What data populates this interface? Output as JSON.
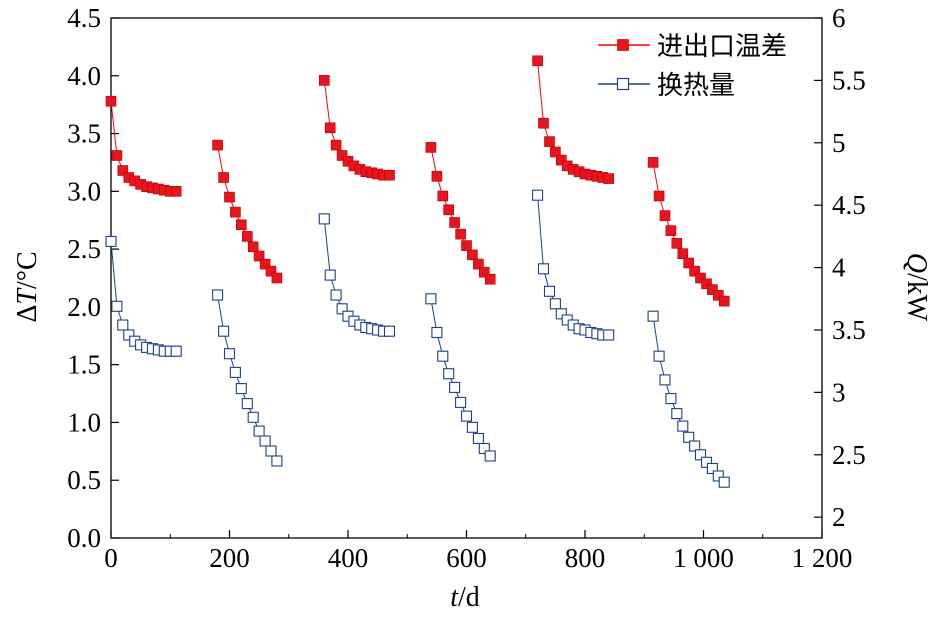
{
  "chart_data": {
    "type": "scatter",
    "xlabel": {
      "var": "t",
      "unit": "/d"
    },
    "ylabel_left": {
      "prefix": "Δ",
      "var": "T",
      "unit": "/°C"
    },
    "ylabel_right": {
      "var": "Q",
      "unit": "/kW"
    },
    "xlim": [
      0,
      1200
    ],
    "ylim_left": [
      0,
      4.5
    ],
    "ylim_right": [
      1.833,
      6
    ],
    "x_ticks": [
      0,
      200,
      400,
      600,
      800,
      1000,
      1200
    ],
    "x_tick_labels": [
      "0",
      "200",
      "400",
      "600",
      "800",
      "1 000",
      "1 200"
    ],
    "y_left_ticks": [
      0,
      0.5,
      1,
      1.5,
      2,
      2.5,
      3,
      3.5,
      4,
      4.5
    ],
    "y_left_tick_labels": [
      "0.0",
      "0.5",
      "1.0",
      "1.5",
      "2.0",
      "2.5",
      "3.0",
      "3.5",
      "4.0",
      "4.5"
    ],
    "y_right_ticks": [
      2,
      2.5,
      3,
      3.5,
      4,
      4.5,
      5,
      5.5,
      6
    ],
    "y_right_tick_labels": [
      "2",
      "2.5",
      "3",
      "3.5",
      "4",
      "4.5",
      "5",
      "5.5",
      "6"
    ],
    "legend_position": "top-right",
    "series": [
      {
        "name": "进出口温差",
        "axis": "left",
        "color": "#ff0000",
        "marker": "filled-square",
        "segments": [
          [
            [
              0,
              3.78
            ],
            [
              10,
              3.31
            ],
            [
              20,
              3.18
            ],
            [
              30,
              3.12
            ],
            [
              40,
              3.09
            ],
            [
              50,
              3.06
            ],
            [
              60,
              3.04
            ],
            [
              70,
              3.03
            ],
            [
              80,
              3.02
            ],
            [
              90,
              3.01
            ],
            [
              100,
              3.0
            ],
            [
              110,
              3.0
            ]
          ],
          [
            [
              180,
              3.4
            ],
            [
              190,
              3.12
            ],
            [
              200,
              2.95
            ],
            [
              210,
              2.82
            ],
            [
              220,
              2.71
            ],
            [
              230,
              2.61
            ],
            [
              240,
              2.52
            ],
            [
              250,
              2.44
            ],
            [
              260,
              2.37
            ],
            [
              270,
              2.31
            ],
            [
              280,
              2.25
            ]
          ],
          [
            [
              360,
              3.96
            ],
            [
              370,
              3.55
            ],
            [
              380,
              3.4
            ],
            [
              390,
              3.31
            ],
            [
              400,
              3.26
            ],
            [
              410,
              3.22
            ],
            [
              420,
              3.19
            ],
            [
              430,
              3.17
            ],
            [
              440,
              3.16
            ],
            [
              450,
              3.15
            ],
            [
              460,
              3.14
            ],
            [
              470,
              3.14
            ]
          ],
          [
            [
              540,
              3.38
            ],
            [
              550,
              3.13
            ],
            [
              560,
              2.96
            ],
            [
              570,
              2.84
            ],
            [
              580,
              2.73
            ],
            [
              590,
              2.63
            ],
            [
              600,
              2.53
            ],
            [
              610,
              2.45
            ],
            [
              620,
              2.37
            ],
            [
              630,
              2.3
            ],
            [
              640,
              2.24
            ]
          ],
          [
            [
              720,
              4.13
            ],
            [
              730,
              3.59
            ],
            [
              740,
              3.43
            ],
            [
              750,
              3.34
            ],
            [
              760,
              3.27
            ],
            [
              770,
              3.22
            ],
            [
              780,
              3.19
            ],
            [
              790,
              3.17
            ],
            [
              800,
              3.15
            ],
            [
              810,
              3.14
            ],
            [
              820,
              3.13
            ],
            [
              830,
              3.12
            ],
            [
              840,
              3.11
            ]
          ],
          [
            [
              915,
              3.25
            ],
            [
              925,
              2.96
            ],
            [
              935,
              2.79
            ],
            [
              945,
              2.66
            ],
            [
              955,
              2.55
            ],
            [
              965,
              2.46
            ],
            [
              975,
              2.38
            ],
            [
              985,
              2.31
            ],
            [
              995,
              2.25
            ],
            [
              1005,
              2.2
            ],
            [
              1015,
              2.15
            ],
            [
              1025,
              2.1
            ],
            [
              1035,
              2.05
            ]
          ]
        ]
      },
      {
        "name": "换热量",
        "axis": "right",
        "color": "#1f3f88",
        "marker": "open-square",
        "segments": [
          [
            [
              0,
              4.21
            ],
            [
              10,
              3.69
            ],
            [
              20,
              3.54
            ],
            [
              30,
              3.46
            ],
            [
              40,
              3.41
            ],
            [
              50,
              3.38
            ],
            [
              60,
              3.36
            ],
            [
              70,
              3.35
            ],
            [
              80,
              3.34
            ],
            [
              90,
              3.33
            ],
            [
              100,
              3.33
            ],
            [
              110,
              3.33
            ]
          ],
          [
            [
              180,
              3.78
            ],
            [
              190,
              3.49
            ],
            [
              200,
              3.31
            ],
            [
              210,
              3.16
            ],
            [
              220,
              3.03
            ],
            [
              230,
              2.91
            ],
            [
              240,
              2.8
            ],
            [
              250,
              2.69
            ],
            [
              260,
              2.61
            ],
            [
              270,
              2.53
            ],
            [
              280,
              2.45
            ]
          ],
          [
            [
              360,
              4.39
            ],
            [
              370,
              3.94
            ],
            [
              380,
              3.78
            ],
            [
              390,
              3.67
            ],
            [
              400,
              3.61
            ],
            [
              410,
              3.57
            ],
            [
              420,
              3.54
            ],
            [
              430,
              3.52
            ],
            [
              440,
              3.51
            ],
            [
              450,
              3.5
            ],
            [
              460,
              3.49
            ],
            [
              470,
              3.49
            ]
          ],
          [
            [
              540,
              3.75
            ],
            [
              550,
              3.48
            ],
            [
              560,
              3.29
            ],
            [
              570,
              3.15
            ],
            [
              580,
              3.04
            ],
            [
              590,
              2.92
            ],
            [
              600,
              2.81
            ],
            [
              610,
              2.72
            ],
            [
              620,
              2.63
            ],
            [
              630,
              2.55
            ],
            [
              640,
              2.49
            ]
          ],
          [
            [
              720,
              4.58
            ],
            [
              730,
              3.99
            ],
            [
              740,
              3.81
            ],
            [
              750,
              3.71
            ],
            [
              760,
              3.63
            ],
            [
              770,
              3.58
            ],
            [
              780,
              3.54
            ],
            [
              790,
              3.51
            ],
            [
              800,
              3.5
            ],
            [
              810,
              3.48
            ],
            [
              820,
              3.47
            ],
            [
              830,
              3.46
            ],
            [
              840,
              3.46
            ]
          ],
          [
            [
              915,
              3.61
            ],
            [
              925,
              3.29
            ],
            [
              935,
              3.1
            ],
            [
              945,
              2.95
            ],
            [
              955,
              2.83
            ],
            [
              965,
              2.73
            ],
            [
              975,
              2.64
            ],
            [
              985,
              2.57
            ],
            [
              995,
              2.5
            ],
            [
              1005,
              2.44
            ],
            [
              1015,
              2.39
            ],
            [
              1025,
              2.33
            ],
            [
              1035,
              2.28
            ]
          ]
        ]
      }
    ]
  }
}
